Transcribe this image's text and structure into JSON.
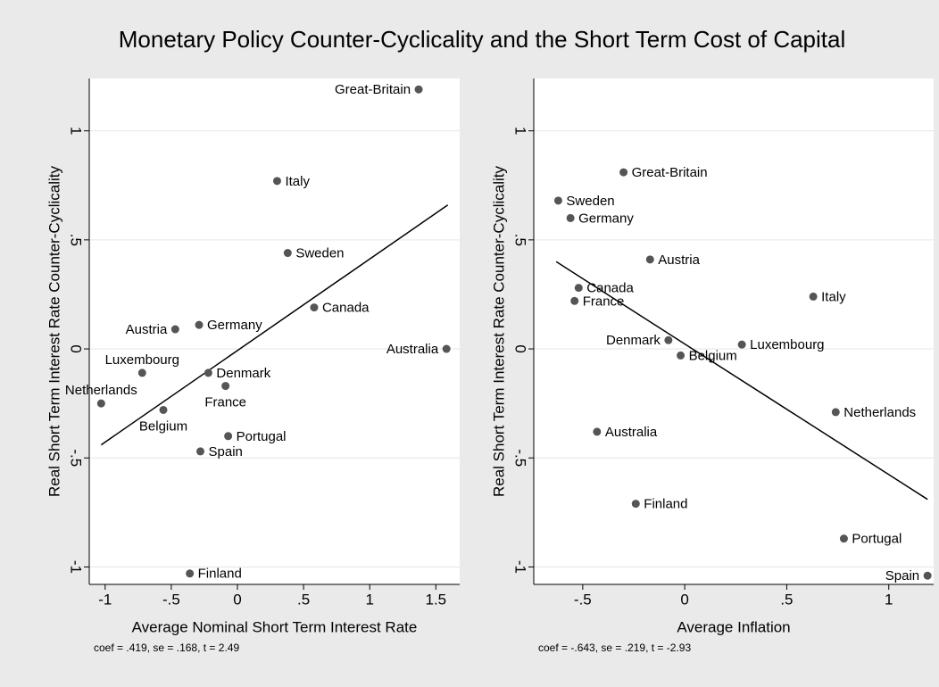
{
  "title": "Monetary Policy Counter-Cyclicality and the Short Term Cost of Capital",
  "chart_data": [
    {
      "type": "scatter",
      "x_label": "Average Nominal Short Term Interest Rate",
      "y_label": "Real Short Term Interest Rate Counter-Cyclicality",
      "note": "coef = .419, se = .168, t = 2.49",
      "labels": [
        "Great-Britain",
        "Italy",
        "Sweden",
        "Canada",
        "Germany",
        "Austria",
        "Australia",
        "Denmark",
        "Luxembourg",
        "France",
        "Netherlands",
        "Belgium",
        "Portugal",
        "Spain",
        "Finland"
      ],
      "x": [
        1.37,
        0.3,
        0.38,
        0.58,
        -0.29,
        -0.47,
        1.58,
        -0.22,
        -0.72,
        -0.09,
        -1.03,
        -0.56,
        -0.07,
        -0.28,
        -0.36
      ],
      "values": [
        1.19,
        0.77,
        0.44,
        0.19,
        0.11,
        0.09,
        0.0,
        -0.11,
        -0.11,
        -0.17,
        -0.25,
        -0.28,
        -0.4,
        -0.47,
        -1.03
      ],
      "fit_line": {
        "x": [
          -1.03,
          1.59
        ],
        "values": [
          -0.44,
          0.66
        ]
      },
      "color": "#555555",
      "line_color": "#000000",
      "xlim": [
        -1.12,
        1.68
      ],
      "ylim": [
        -1.08,
        1.24
      ],
      "xticks": [
        -1,
        {
          "value": -0.5,
          "label": "-.5"
        },
        0,
        {
          "value": 0.5,
          "label": ".5"
        },
        1,
        1.5
      ],
      "yticks": [
        -1,
        {
          "value": -0.5,
          "label": "-.5"
        },
        0,
        {
          "value": 0.5,
          "label": ".5"
        },
        1
      ],
      "grid": true
    },
    {
      "type": "scatter",
      "x_label": "Average Inflation",
      "y_label": "Real Short Term Interest Rate Counter-Cyclicality",
      "note": "coef = -.643, se = .219, t = -2.93",
      "labels": [
        "Great-Britain",
        "Sweden",
        "Germany",
        "Austria",
        "Canada",
        "Italy",
        "France",
        "Denmark",
        "Luxembourg",
        "Belgium",
        "Netherlands",
        "Australia",
        "Finland",
        "Portugal",
        "Spain"
      ],
      "x": [
        -0.3,
        -0.62,
        -0.56,
        -0.17,
        -0.52,
        0.63,
        -0.54,
        -0.08,
        0.28,
        -0.02,
        0.74,
        -0.43,
        -0.24,
        0.78,
        1.19
      ],
      "values": [
        0.81,
        0.68,
        0.6,
        0.41,
        0.28,
        0.24,
        0.22,
        0.04,
        0.02,
        -0.03,
        -0.29,
        -0.38,
        -0.71,
        -0.87,
        -1.04
      ],
      "fit_line": {
        "x": [
          -0.63,
          1.19
        ],
        "values": [
          0.4,
          -0.69
        ]
      },
      "color": "#555555",
      "line_color": "#000000",
      "xlim": [
        -0.74,
        1.22
      ],
      "ylim": [
        -1.08,
        1.24
      ],
      "xticks": [
        {
          "value": -0.5,
          "label": "-.5"
        },
        0,
        {
          "value": 0.5,
          "label": ".5"
        },
        1
      ],
      "yticks": [
        -1,
        {
          "value": -0.5,
          "label": "-.5"
        },
        0,
        {
          "value": 0.5,
          "label": ".5"
        },
        1
      ],
      "grid": true
    }
  ]
}
